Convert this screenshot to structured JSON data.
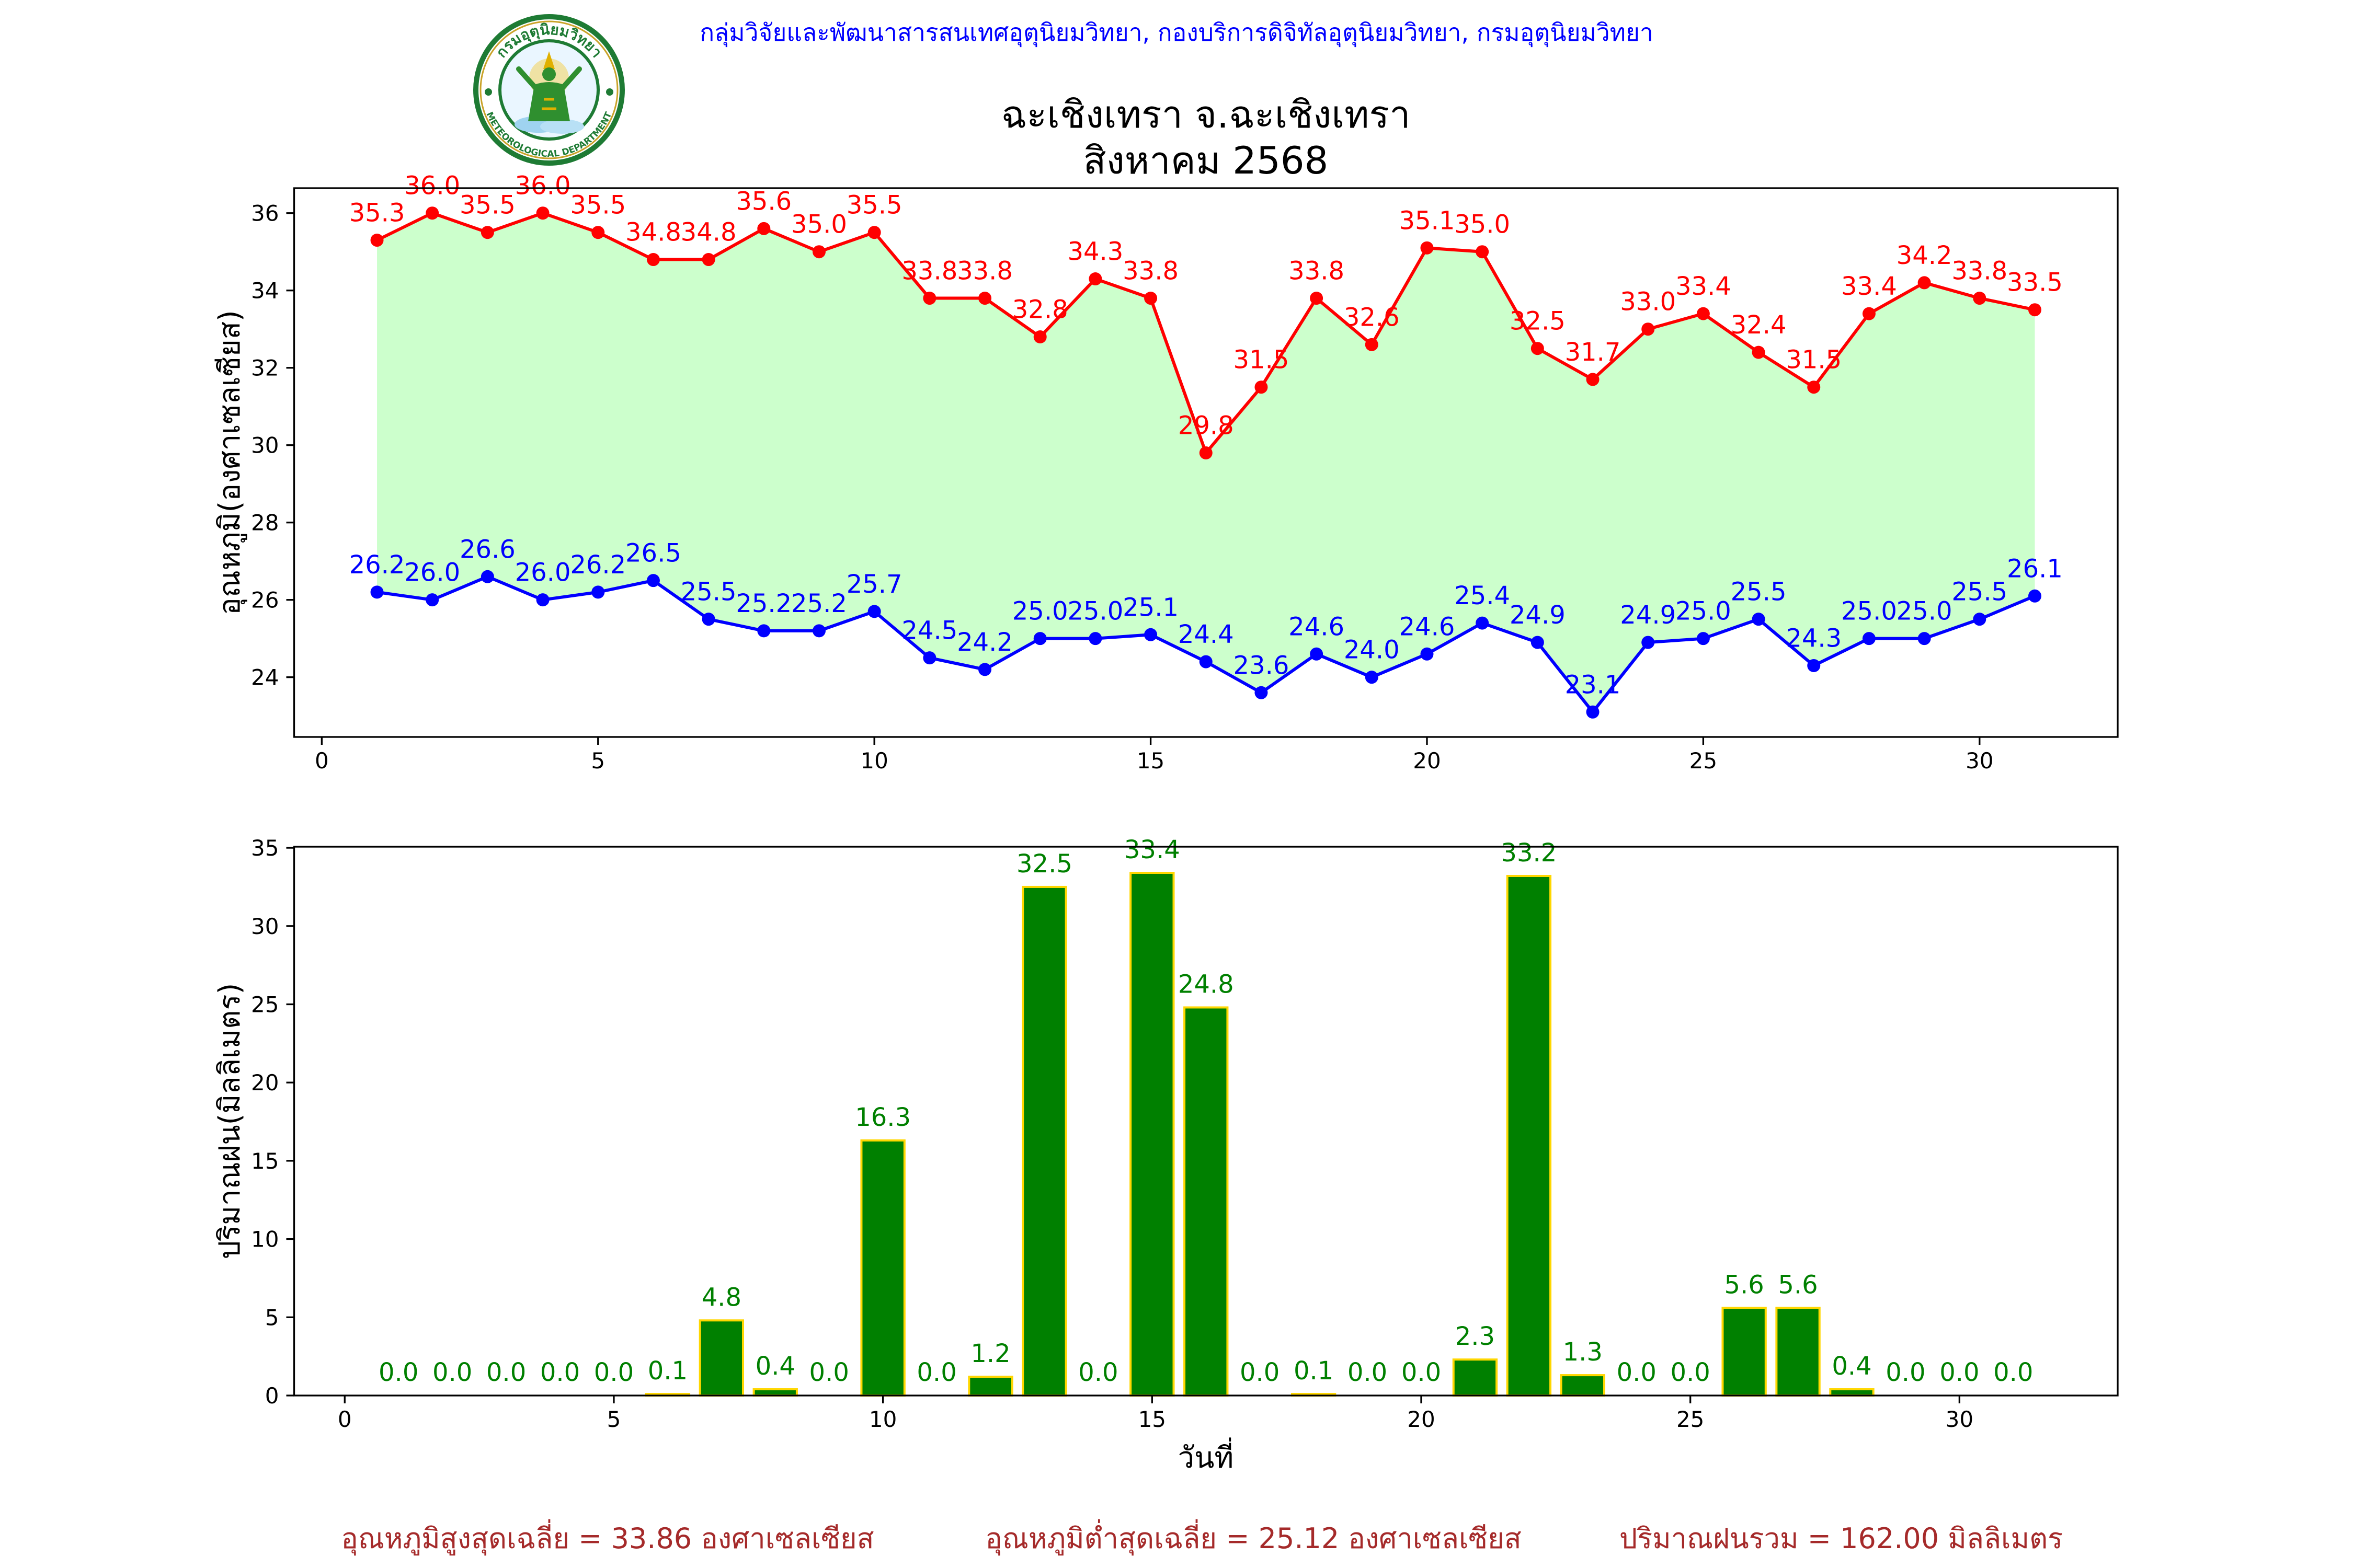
{
  "header": {
    "organization": "กลุ่มวิจัยและพัฒนาสารสนเทศอุตุนิยมวิทยา, กองบริการดิจิทัลอุตุนิยมวิทยา, กรมอุตุนิยมวิทยา"
  },
  "logo": {
    "icon": "meteorological-department-seal-icon",
    "text_top": "กรมอุตุนิยมวิทยา",
    "text_bottom": "METEOROLOGICAL DEPARTMENT"
  },
  "colors": {
    "header_text": "#0000ff",
    "footer_text": "#a52a2a"
  },
  "chart_data": [
    {
      "type": "line",
      "title": "ฉะเชิงเทรา จ.ฉะเชิงเทรา",
      "subtitle": "สิงหาคม 2568",
      "xlabel": "",
      "ylabel": "อุณหภูมิ(องศาเซลเซียส)",
      "x": [
        1,
        2,
        3,
        4,
        5,
        6,
        7,
        8,
        9,
        10,
        11,
        12,
        13,
        14,
        15,
        16,
        17,
        18,
        19,
        20,
        21,
        22,
        23,
        24,
        25,
        26,
        27,
        28,
        29,
        30,
        31
      ],
      "series": [
        {
          "color": "#ff0000",
          "values": [
            35.3,
            36.0,
            35.5,
            36.0,
            35.5,
            34.8,
            34.8,
            35.6,
            35.0,
            35.5,
            33.8,
            33.8,
            32.8,
            34.3,
            33.8,
            29.8,
            31.5,
            33.8,
            32.6,
            35.1,
            35.0,
            32.5,
            31.7,
            33.0,
            33.4,
            32.4,
            31.5,
            33.4,
            34.2,
            33.8,
            33.5
          ]
        },
        {
          "color": "#0000ff",
          "values": [
            26.2,
            26.0,
            26.6,
            26.0,
            26.2,
            26.5,
            25.5,
            25.2,
            25.2,
            25.7,
            24.5,
            24.2,
            25.0,
            25.0,
            25.1,
            24.4,
            23.6,
            24.6,
            24.0,
            24.6,
            25.4,
            24.9,
            23.1,
            24.9,
            25.0,
            25.5,
            24.3,
            25.0,
            25.0,
            25.5,
            26.1
          ]
        }
      ],
      "fill_color": "#ccffcc",
      "xlim": [
        -0.5,
        32.5
      ],
      "ylim": [
        22.455,
        36.645
      ],
      "xticks": [
        0,
        5,
        10,
        15,
        20,
        25,
        30
      ],
      "yticks": [
        24,
        26,
        28,
        30,
        32,
        34,
        36
      ],
      "grid": false
    },
    {
      "type": "bar",
      "xlabel": "วันที่",
      "ylabel": "ปริมาณฝน(มิลลิเมตร)",
      "x": [
        1,
        2,
        3,
        4,
        5,
        6,
        7,
        8,
        9,
        10,
        11,
        12,
        13,
        14,
        15,
        16,
        17,
        18,
        19,
        20,
        21,
        22,
        23,
        24,
        25,
        26,
        27,
        28,
        29,
        30,
        31
      ],
      "values": [
        0.0,
        0.0,
        0.0,
        0.0,
        0.0,
        0.1,
        4.8,
        0.4,
        0.0,
        16.3,
        0.0,
        1.2,
        32.5,
        0.0,
        33.4,
        24.8,
        0.0,
        0.1,
        0.0,
        0.0,
        2.3,
        33.2,
        1.3,
        0.0,
        0.0,
        5.6,
        5.6,
        0.4,
        0.0,
        0.0,
        0.0
      ],
      "color": "#008000",
      "edge_color": "#ffd700",
      "label_color": "#008000",
      "xlim": [
        -0.94,
        32.94
      ],
      "ylim": [
        0,
        35.07
      ],
      "xticks": [
        0,
        5,
        10,
        15,
        20,
        25,
        30
      ],
      "yticks": [
        0,
        5,
        10,
        15,
        20,
        25,
        30,
        35
      ],
      "grid": false
    }
  ],
  "footer": {
    "avg_max_temperature": "อุณหภูมิสูงสุดเฉลี่ย = 33.86 องศาเซลเซียส",
    "avg_min_temperature": "อุณหภูมิต่ำสุดเฉลี่ย = 25.12 องศาเซลเซียส",
    "total_rainfall": "ปริมาณฝนรวม = 162.00 มิลลิเมตร"
  }
}
